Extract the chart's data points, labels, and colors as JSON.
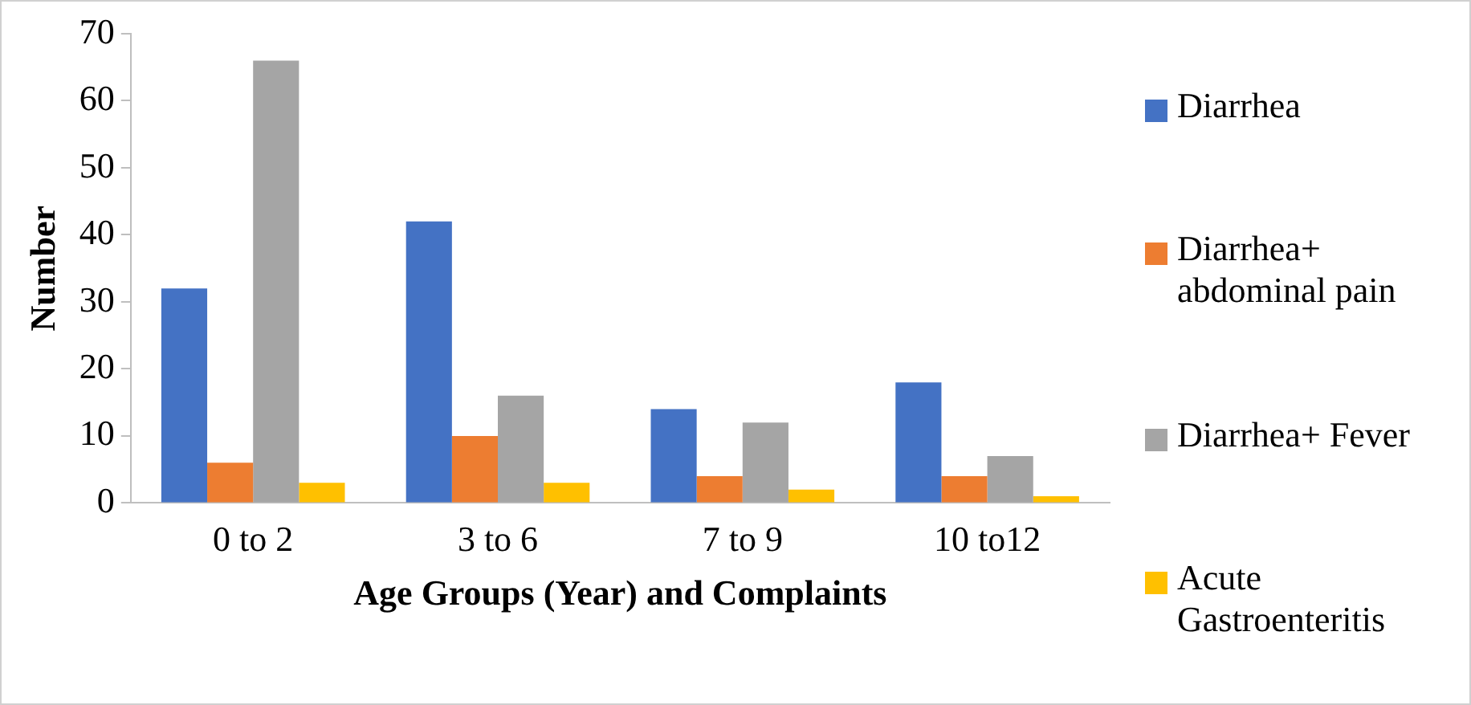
{
  "chart_data": {
    "type": "bar",
    "xlabel": "Age Groups (Year) and Complaints",
    "ylabel": "Number",
    "categories": [
      "0 to 2",
      "3 to 6",
      "7 to 9",
      "10 to12"
    ],
    "series": [
      {
        "name": "Diarrhea",
        "color": "#4472c4",
        "values": [
          32,
          42,
          14,
          18
        ]
      },
      {
        "name": "Diarrhea+ abdominal pain",
        "color": "#ed7d31",
        "values": [
          6,
          10,
          4,
          4
        ]
      },
      {
        "name": "Diarrhea+ Fever",
        "color": "#a5a5a5",
        "values": [
          66,
          16,
          12,
          7
        ]
      },
      {
        "name": "Acute Gastroenteritis",
        "color": "#ffc000",
        "values": [
          3,
          3,
          2,
          1
        ]
      }
    ],
    "ylim": [
      0,
      70
    ],
    "yticks": [
      0,
      10,
      20,
      30,
      40,
      50,
      60,
      70
    ],
    "grid": false,
    "legend": "right"
  }
}
